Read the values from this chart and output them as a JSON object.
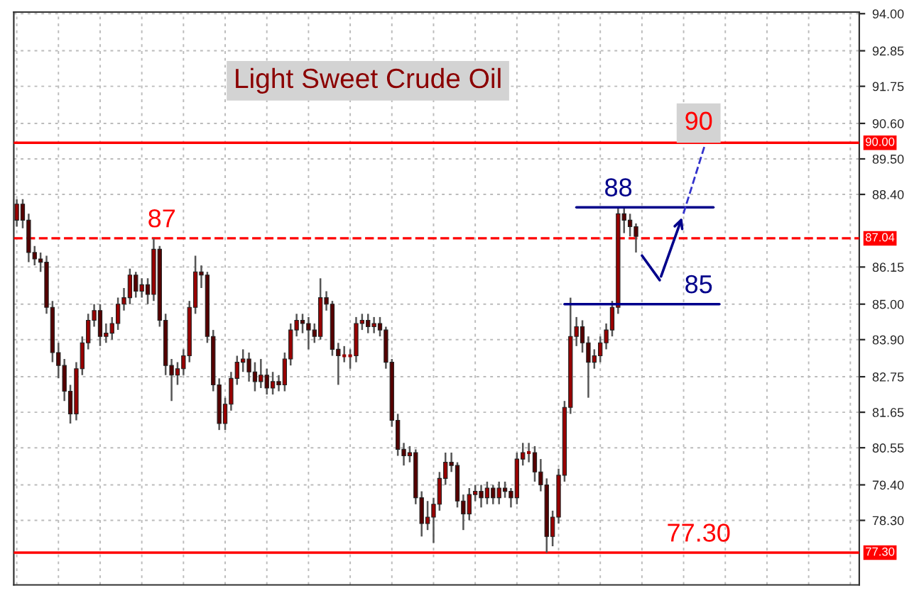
{
  "chart_data": {
    "type": "candlestick",
    "title": "Light Sweet Crude Oil",
    "categories": [
      null,
      null,
      null,
      null,
      null,
      null,
      null,
      null,
      null,
      null,
      null,
      null,
      null,
      null,
      null,
      null,
      null,
      null,
      null,
      null,
      null,
      null,
      null,
      null,
      null,
      null,
      null,
      null,
      null,
      null,
      null,
      null,
      null,
      null,
      null,
      null,
      null,
      null,
      null,
      null,
      null,
      null,
      null,
      null,
      null,
      null,
      null,
      null,
      null,
      null,
      null,
      null,
      null,
      null,
      null,
      null,
      null,
      null,
      null,
      null,
      null,
      null,
      null,
      null,
      null,
      null,
      null,
      null,
      null,
      null,
      null,
      null,
      null,
      null,
      null,
      null,
      null,
      null,
      null,
      null,
      null,
      null,
      null,
      null,
      null,
      null,
      null,
      null,
      null,
      null,
      null,
      null,
      null,
      null,
      null,
      null,
      null,
      null,
      null,
      null,
      null,
      null,
      null,
      null,
      null,
      null,
      null,
      null,
      null,
      null,
      null,
      null,
      null,
      null,
      null,
      null,
      null,
      null,
      null,
      null,
      null,
      null,
      null,
      null,
      null,
      null,
      null,
      null,
      null,
      null,
      null,
      null,
      null,
      null,
      null,
      null,
      null,
      null,
      null,
      null,
      null,
      null
    ],
    "colors": [
      "#990000",
      "#550000",
      "#550000",
      "#550000",
      "#550000",
      "#550000",
      "#550000",
      "#550000",
      "#550000",
      "#550000",
      "#990000",
      "#990000",
      "#990000",
      "#990000",
      "#550000",
      "#990000",
      "#990000",
      "#990000",
      "#990000",
      "#990000",
      "#550000",
      "#990000",
      "#550000",
      "#990000",
      "#550000",
      "#550000",
      "#550000",
      "#990000",
      "#990000",
      "#990000",
      "#990000",
      "#550000",
      "#550000",
      "#550000",
      "#550000",
      "#990000",
      "#990000",
      "#990000",
      "#990000",
      "#550000",
      "#550000",
      "#990000",
      "#550000",
      "#990000",
      "#550000",
      "#990000",
      "#990000",
      "#990000",
      "#550000",
      "#550000",
      "#550000",
      "#990000",
      "#550000",
      "#550000",
      "#550000",
      "#990000",
      "#990000",
      "#990000",
      "#990000",
      "#550000",
      "#990000",
      "#550000",
      "#550000",
      "#550000",
      "#550000",
      "#550000",
      "#990000",
      "#550000",
      "#550000",
      "#990000",
      "#990000",
      "#990000",
      "#990000",
      "#550000",
      "#550000",
      "#550000",
      "#990000",
      "#990000",
      "#550000",
      "#990000",
      "#550000",
      "#990000",
      "#550000",
      "#550000",
      "#990000",
      "#990000",
      "#990000",
      "#550000",
      "#550000",
      "#550000",
      "#990000",
      "#990000",
      "#990000",
      "#990000",
      "#990000",
      "#550000",
      "#550000",
      "#990000",
      "#990000",
      "#990000",
      "#990000",
      "#990000",
      "#550000",
      "#550000",
      "#550000",
      null,
      null,
      null,
      null,
      null,
      null,
      null,
      null,
      null,
      null,
      null,
      null,
      null,
      null,
      null,
      null,
      null,
      null,
      null,
      null,
      null,
      null,
      null,
      null,
      null,
      null,
      null,
      null,
      null,
      null,
      null,
      null,
      null,
      null,
      null,
      null,
      null
    ],
    "ohlc": [
      [
        87.6,
        88.25,
        87.4,
        88.1
      ],
      [
        88.1,
        88.25,
        87.35,
        87.6
      ],
      [
        87.6,
        87.8,
        86.3,
        86.6
      ],
      [
        86.6,
        86.8,
        86.2,
        86.4
      ],
      [
        86.4,
        86.6,
        86.0,
        86.3
      ],
      [
        86.3,
        86.5,
        84.7,
        84.9
      ],
      [
        84.9,
        85.1,
        83.2,
        83.5
      ],
      [
        83.5,
        83.8,
        82.7,
        83.1
      ],
      [
        83.1,
        83.3,
        82.0,
        82.3
      ],
      [
        82.3,
        82.5,
        81.3,
        81.6
      ],
      [
        81.6,
        83.2,
        81.4,
        83.0
      ],
      [
        83.0,
        84.0,
        82.8,
        83.8
      ],
      [
        83.8,
        84.7,
        83.6,
        84.5
      ],
      [
        84.5,
        85.0,
        84.3,
        84.8
      ],
      [
        84.8,
        85.0,
        83.7,
        84.0
      ],
      [
        84.0,
        84.4,
        83.8,
        84.1
      ],
      [
        84.1,
        84.6,
        83.9,
        84.4
      ],
      [
        84.4,
        85.2,
        84.2,
        85.0
      ],
      [
        85.0,
        85.5,
        84.8,
        85.2
      ],
      [
        85.2,
        86.1,
        85.0,
        85.9
      ],
      [
        85.9,
        86.0,
        85.2,
        85.4
      ],
      [
        85.4,
        85.8,
        85.2,
        85.6
      ],
      [
        85.6,
        85.8,
        85.0,
        85.3
      ],
      [
        85.3,
        87.04,
        85.1,
        86.7
      ],
      [
        86.7,
        86.8,
        84.3,
        84.5
      ],
      [
        84.5,
        84.7,
        82.8,
        83.1
      ],
      [
        83.1,
        83.3,
        82.0,
        82.8
      ],
      [
        82.8,
        83.2,
        82.5,
        83.0
      ],
      [
        83.0,
        83.6,
        82.8,
        83.4
      ],
      [
        83.4,
        85.1,
        83.2,
        84.9
      ],
      [
        84.9,
        86.5,
        84.7,
        86.0
      ],
      [
        86.0,
        86.2,
        85.5,
        85.9
      ],
      [
        85.9,
        86.0,
        83.8,
        84.0
      ],
      [
        84.0,
        84.2,
        82.3,
        82.5
      ],
      [
        82.5,
        82.7,
        81.1,
        81.3
      ],
      [
        81.3,
        82.1,
        81.1,
        81.9
      ],
      [
        81.9,
        82.9,
        81.7,
        82.7
      ],
      [
        82.7,
        83.4,
        82.5,
        83.2
      ],
      [
        83.2,
        83.6,
        82.9,
        83.3
      ],
      [
        83.3,
        83.5,
        82.6,
        82.9
      ],
      [
        82.9,
        83.2,
        82.3,
        82.6
      ],
      [
        82.6,
        83.3,
        82.4,
        82.8
      ],
      [
        82.8,
        83.0,
        82.2,
        82.4
      ],
      [
        82.4,
        82.9,
        82.2,
        82.6
      ],
      [
        82.6,
        82.8,
        82.3,
        82.5
      ],
      [
        82.5,
        83.5,
        82.3,
        83.3
      ],
      [
        83.3,
        84.4,
        83.1,
        84.2
      ],
      [
        84.2,
        84.7,
        84.0,
        84.5
      ],
      [
        84.5,
        84.7,
        84.1,
        84.4
      ],
      [
        84.4,
        84.6,
        83.6,
        84.2
      ],
      [
        84.2,
        84.4,
        83.8,
        84.0
      ],
      [
        84.0,
        85.8,
        83.9,
        85.2
      ],
      [
        85.2,
        85.4,
        84.8,
        85.0
      ],
      [
        85.0,
        85.1,
        83.4,
        83.6
      ],
      [
        83.6,
        83.8,
        82.5,
        83.4
      ],
      [
        83.4,
        83.7,
        83.2,
        83.4
      ],
      [
        83.4,
        83.6,
        83.0,
        83.4
      ],
      [
        83.4,
        84.6,
        83.2,
        84.4
      ],
      [
        84.4,
        84.7,
        84.2,
        84.5
      ],
      [
        84.5,
        84.7,
        84.1,
        84.3
      ],
      [
        84.3,
        84.6,
        84.1,
        84.4
      ],
      [
        84.4,
        84.6,
        84.0,
        84.2
      ],
      [
        84.2,
        84.3,
        83.0,
        83.2
      ],
      [
        83.2,
        83.3,
        81.2,
        81.4
      ],
      [
        81.4,
        81.6,
        80.3,
        80.5
      ],
      [
        80.5,
        80.7,
        80.0,
        80.3
      ],
      [
        80.3,
        80.6,
        80.1,
        80.4
      ],
      [
        80.4,
        80.5,
        78.8,
        79.0
      ],
      [
        79.0,
        79.2,
        77.8,
        78.2
      ],
      [
        78.2,
        78.9,
        78.0,
        78.4
      ],
      [
        78.4,
        79.0,
        77.6,
        78.8
      ],
      [
        78.8,
        79.8,
        78.6,
        79.6
      ],
      [
        79.6,
        80.4,
        79.4,
        80.1
      ],
      [
        80.1,
        80.4,
        79.8,
        80.0
      ],
      [
        80.0,
        80.1,
        78.7,
        78.9
      ],
      [
        78.9,
        79.1,
        78.0,
        78.5
      ],
      [
        78.5,
        79.3,
        78.3,
        79.1
      ],
      [
        79.1,
        79.4,
        78.9,
        79.2
      ],
      [
        79.2,
        79.4,
        78.7,
        79.0
      ],
      [
        79.0,
        79.5,
        78.8,
        79.3
      ],
      [
        79.3,
        79.4,
        78.8,
        79.0
      ],
      [
        79.0,
        79.5,
        78.8,
        79.3
      ],
      [
        79.3,
        79.5,
        79.0,
        79.2
      ],
      [
        79.2,
        79.3,
        78.7,
        79.0
      ],
      [
        79.0,
        80.4,
        78.8,
        80.2
      ],
      [
        80.2,
        80.7,
        80.0,
        80.4
      ],
      [
        80.4,
        80.7,
        80.1,
        80.4
      ],
      [
        80.4,
        80.6,
        79.5,
        79.8
      ],
      [
        79.8,
        80.2,
        79.2,
        79.4
      ],
      [
        79.4,
        79.6,
        77.3,
        77.8
      ],
      [
        77.8,
        78.6,
        77.5,
        78.4
      ],
      [
        78.4,
        79.9,
        78.2,
        79.7
      ],
      [
        79.7,
        82.0,
        79.5,
        81.8
      ],
      [
        81.8,
        85.2,
        81.6,
        84.0
      ],
      [
        84.0,
        84.6,
        83.7,
        84.3
      ],
      [
        84.3,
        84.5,
        83.5,
        83.8
      ],
      [
        83.8,
        84.0,
        82.1,
        83.2
      ],
      [
        83.2,
        83.6,
        83.0,
        83.4
      ],
      [
        83.4,
        84.0,
        83.2,
        83.8
      ],
      [
        83.8,
        84.4,
        83.6,
        84.2
      ],
      [
        84.2,
        85.1,
        84.0,
        84.9
      ],
      [
        84.9,
        88.0,
        84.7,
        87.8
      ],
      [
        87.8,
        88.0,
        87.2,
        87.6
      ],
      [
        87.6,
        87.8,
        87.1,
        87.4
      ],
      [
        87.4,
        87.5,
        86.6,
        87.1
      ],
      null,
      null,
      null,
      null,
      null,
      null,
      null,
      null,
      null,
      null,
      null,
      null,
      null,
      null,
      null,
      null,
      null,
      null,
      null,
      null,
      null,
      null,
      null,
      null,
      null,
      null,
      null,
      null,
      null,
      null,
      null,
      null,
      null,
      null,
      null,
      null,
      null
    ],
    "series": [
      {
        "type": "line",
        "color": "#00008b",
        "values": [
          null,
          null,
          null,
          null,
          null,
          null,
          null,
          null,
          null,
          null,
          null,
          null,
          null,
          null,
          null,
          null,
          null,
          null,
          null,
          null,
          null,
          null,
          null,
          null,
          null,
          null,
          null,
          null,
          null,
          null,
          null,
          null,
          null,
          null,
          null,
          null,
          null,
          null,
          null,
          null,
          null,
          null,
          null,
          null,
          null,
          null,
          null,
          null,
          null,
          null,
          null,
          null,
          null,
          null,
          null,
          null,
          null,
          null,
          null,
          null,
          null,
          null,
          null,
          null,
          null,
          null,
          null,
          null,
          null,
          null,
          null,
          null,
          null,
          null,
          null,
          null,
          null,
          null,
          null,
          null,
          null,
          null,
          null,
          null,
          null,
          null,
          null,
          null,
          null,
          null,
          null,
          null,
          85.0,
          85.0,
          85.0,
          85.0,
          85.0,
          85.0,
          85.0,
          85.0,
          85.0,
          85.0,
          85.0,
          85.0,
          85.0,
          85.0,
          85.0,
          85.0,
          85.0,
          85.0,
          85.0,
          85.0,
          85.0,
          85.0,
          85.0,
          85.0,
          85.0,
          85.0,
          85.0,
          null,
          null,
          null,
          null,
          null,
          null,
          null,
          null,
          null,
          null,
          null,
          null,
          null,
          null,
          null,
          null,
          null,
          null,
          null,
          null,
          null,
          null,
          null
        ]
      },
      {
        "type": "line",
        "color": "#00008b",
        "values": [
          null,
          null,
          null,
          null,
          null,
          null,
          null,
          null,
          null,
          null,
          null,
          null,
          null,
          null,
          null,
          null,
          null,
          null,
          null,
          null,
          null,
          null,
          null,
          null,
          null,
          null,
          null,
          null,
          null,
          null,
          null,
          null,
          null,
          null,
          null,
          null,
          null,
          null,
          null,
          null,
          null,
          null,
          null,
          null,
          null,
          null,
          null,
          null,
          null,
          null,
          null,
          null,
          null,
          null,
          null,
          null,
          null,
          null,
          null,
          null,
          null,
          null,
          null,
          null,
          null,
          null,
          null,
          null,
          null,
          null,
          null,
          null,
          null,
          null,
          null,
          null,
          null,
          null,
          null,
          null,
          null,
          null,
          null,
          null,
          null,
          null,
          null,
          null,
          null,
          null,
          null,
          null,
          null,
          null,
          88.0,
          88.0,
          88.0,
          88.0,
          88.0,
          88.0,
          88.0,
          88.0,
          88.0,
          88.0,
          88.0,
          88.0,
          88.0,
          88.0,
          88.0,
          88.0,
          88.0,
          88.0,
          88.0,
          88.0,
          88.0,
          88.0,
          88.0,
          88.0,
          null,
          null,
          null,
          null,
          null,
          null,
          null,
          null,
          null,
          null,
          null,
          null,
          null,
          null,
          null,
          null,
          null,
          null,
          null,
          null,
          null,
          null,
          null,
          null
        ]
      }
    ],
    "ylim": [
      76.3,
      94.05
    ],
    "yticks": [
      {
        "value": 94.0,
        "label": "94.00"
      },
      {
        "value": 92.85,
        "label": "92.85"
      },
      {
        "value": 91.75,
        "label": "91.75"
      },
      {
        "value": 90.6,
        "label": "90.60"
      },
      {
        "value": 89.5,
        "label": "89.50"
      },
      {
        "value": 88.4,
        "label": "88.40"
      },
      {
        "value": 86.15,
        "label": "86.15"
      },
      {
        "value": 85.0,
        "label": "85.00"
      },
      {
        "value": 83.9,
        "label": "83.90"
      },
      {
        "value": 82.75,
        "label": "82.75"
      },
      {
        "value": 81.65,
        "label": "81.65"
      },
      {
        "value": 80.55,
        "label": "80.55"
      },
      {
        "value": 79.4,
        "label": "79.40"
      },
      {
        "value": 78.3,
        "label": "78.30"
      }
    ],
    "ref_lines": [
      {
        "axis": "y",
        "value": 90.0,
        "label": "90.00",
        "color": "#ff0000",
        "line_style": "solid"
      },
      {
        "axis": "y",
        "value": 87.04,
        "label": "87.04",
        "color": "#ff0000",
        "line_style": "dashed"
      },
      {
        "axis": "y",
        "value": 77.3,
        "label": "77.30",
        "color": "#ff0000",
        "line_style": "solid"
      }
    ],
    "annotations": [
      {
        "text": "87",
        "y": 87.04
      },
      {
        "text": "88",
        "y": 88.0
      },
      {
        "text": "85",
        "y": 85.0
      },
      {
        "text": "90",
        "y": 90.0
      },
      {
        "text": "77.30",
        "y": 77.3
      }
    ],
    "grid": true,
    "legend": false,
    "tick_labels": "y"
  }
}
